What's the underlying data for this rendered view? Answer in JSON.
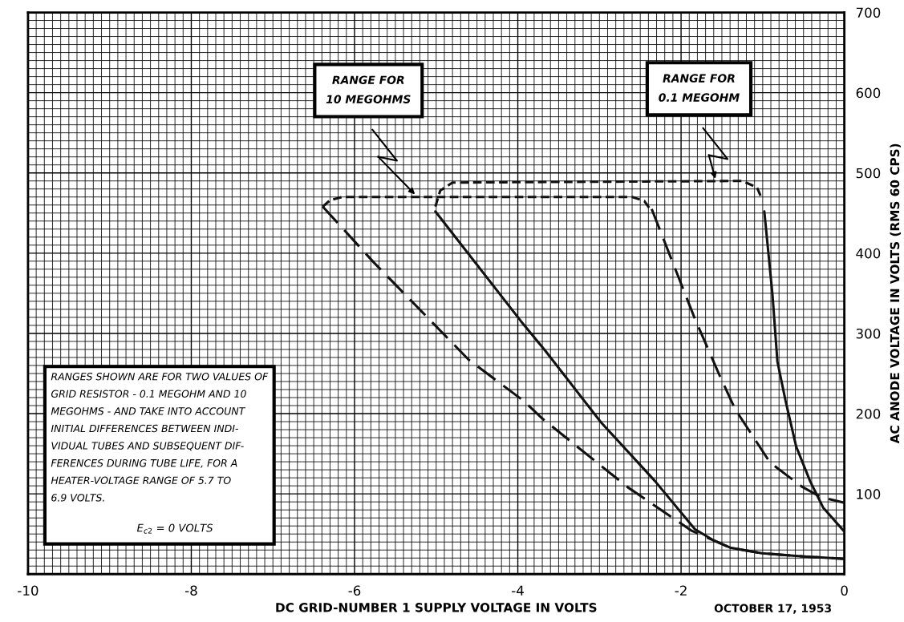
{
  "chart_data": {
    "type": "line",
    "xlabel": "DC GRID-NUMBER 1 SUPPLY VOLTAGE IN VOLTS",
    "ylabel": "AC ANODE VOLTAGE IN VOLTS (RMS 60 CPS)",
    "xlim": [
      -10,
      0
    ],
    "ylim": [
      0,
      700
    ],
    "xticks": [
      -10,
      -8,
      -6,
      -4,
      -2,
      0
    ],
    "yticks": [
      100,
      200,
      300,
      400,
      500,
      600,
      700
    ],
    "grid": true,
    "marker": "none",
    "series": [
      {
        "color": "#111111",
        "line_style": "dashed",
        "x": [
          -6.39,
          -5.76,
          -4.6,
          -3.93,
          -3.69,
          -2.65,
          -1.87,
          -1.4,
          -1.01,
          -0.5,
          0
        ],
        "values": [
          458,
          388,
          267,
          216,
          193,
          108,
          54,
          33,
          26,
          22,
          19
        ]
      },
      {
        "color": "#111111",
        "line_style": "dotted",
        "x": [
          -6.39,
          -6.3,
          -6.15,
          -2.6,
          -2.45,
          -2.38
        ],
        "values": [
          458,
          466,
          470,
          470,
          465,
          455
        ]
      },
      {
        "color": "#111111",
        "line_style": "dashed",
        "x": [
          -2.36,
          -1.83,
          -1.53,
          -1.34,
          -0.91,
          -0.52,
          -0.29,
          0
        ],
        "values": [
          455,
          318,
          248,
          206,
          139,
          109,
          96,
          89
        ]
      },
      {
        "color": "#111111",
        "line_style": "solid",
        "x": [
          -5.01,
          -3.96,
          -3.66,
          -2.98,
          -2.32,
          -1.83,
          -1.6,
          -1.4,
          -1.01,
          -0.5,
          0
        ],
        "values": [
          452,
          315,
          278,
          189,
          116,
          56,
          42,
          33,
          26,
          22,
          19
        ]
      },
      {
        "color": "#111111",
        "line_style": "dotted",
        "x": [
          -5.01,
          -4.95,
          -4.8,
          -1.25,
          -1.07,
          -1.02
        ],
        "values": [
          458,
          478,
          488,
          490,
          482,
          470
        ]
      },
      {
        "color": "#111111",
        "line_style": "solid",
        "x": [
          -0.98,
          -0.88,
          -0.82,
          -0.72,
          -0.59,
          -0.42,
          -0.26,
          0
        ],
        "values": [
          452,
          348,
          265,
          216,
          159,
          116,
          83,
          53
        ]
      }
    ],
    "annotations": [
      "RANGE FOR\n10 MEGOHMS",
      "RANGE FOR\n0.1 MEGOHM",
      "RANGES SHOWN ARE FOR TWO VALUES OF\nGRID RESISTOR - 0.1 MEGOHM AND 10\nMEGOHMS - AND TAKE INTO ACCOUNT\nINITIAL DIFFERENCES BETWEEN INDI-\nVIDUAL TUBES AND SUBSEQUENT DIF-\nFERENCES DURING TUBE LIFE, FOR A\nHEATER-VOLTAGE RANGE OF 5.7 TO\n6.9 VOLTS.",
      "E$_{c2}$ = 0 VOLTS",
      "OCTOBER 17, 1953"
    ]
  }
}
